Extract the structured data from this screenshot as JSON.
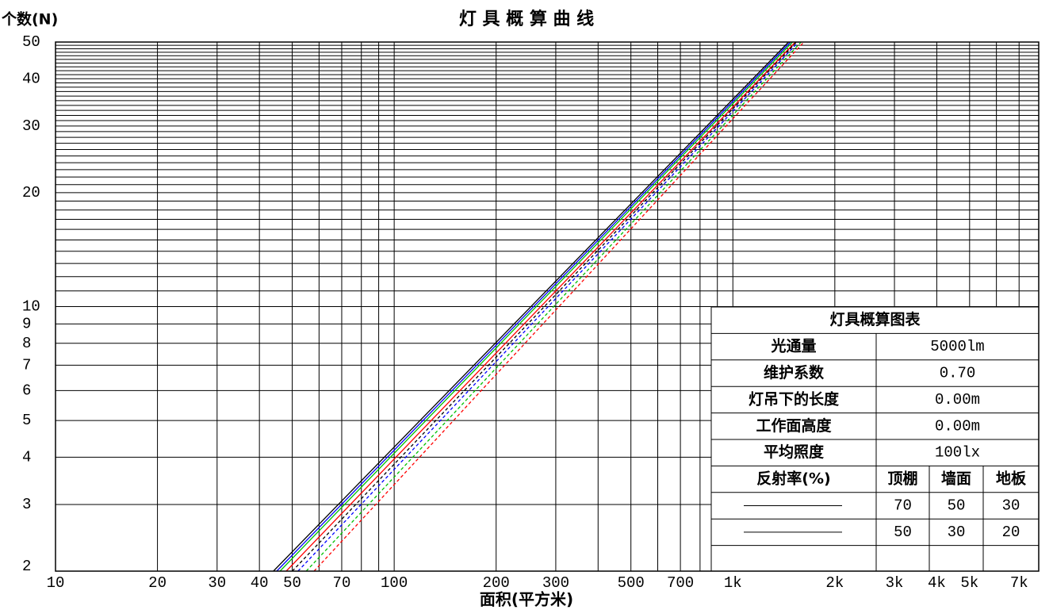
{
  "chart_data": {
    "type": "line",
    "title": "灯 具 概 算 曲 线",
    "y_label": "个数(N)",
    "x_label": "面积(平方米)",
    "log_x": true,
    "log_y": true,
    "grid": true,
    "xlim": [
      10,
      8000
    ],
    "ylim": [
      2,
      50
    ],
    "xticks": [
      10,
      20,
      30,
      40,
      50,
      70,
      100,
      200,
      300,
      500,
      700,
      {
        "value": 1000,
        "label": "1k"
      },
      {
        "value": 2000,
        "label": "2k"
      },
      {
        "value": 3000,
        "label": "3k"
      },
      {
        "value": 4000,
        "label": "4k"
      },
      {
        "value": 5000,
        "label": "5k"
      },
      {
        "value": 7000,
        "label": "7k"
      }
    ],
    "x_minor_grid": [
      60,
      80,
      90,
      400,
      600,
      800,
      900,
      6000
    ],
    "yticks": [
      2,
      3,
      4,
      5,
      6,
      7,
      8,
      9,
      10,
      20,
      30,
      40,
      50
    ],
    "y_minor_grid": [
      11,
      12,
      13,
      14,
      15,
      16,
      17,
      18,
      19,
      21,
      22,
      23,
      24,
      25,
      26,
      27,
      28,
      29,
      31,
      32,
      33,
      34,
      35,
      36,
      37,
      38,
      39,
      41,
      42,
      43,
      44,
      45,
      46,
      47,
      48,
      49
    ],
    "series": [
      {
        "color": "#000000",
        "style": "solid",
        "x": [
          44,
          1460
        ],
        "values": [
          2,
          50
        ]
      },
      {
        "color": "#0000ff",
        "style": "solid",
        "x": [
          45,
          1480
        ],
        "values": [
          2,
          50
        ]
      },
      {
        "color": "#00c000",
        "style": "solid",
        "x": [
          46,
          1500
        ],
        "values": [
          2,
          50
        ]
      },
      {
        "color": "#ff0000",
        "style": "solid",
        "x": [
          48,
          1530
        ],
        "values": [
          2,
          50
        ]
      },
      {
        "color": "#000000",
        "style": "dashed",
        "x": [
          50,
          1540
        ],
        "values": [
          2,
          50
        ]
      },
      {
        "color": "#0000ff",
        "style": "dashed",
        "x": [
          52,
          1560
        ],
        "values": [
          2,
          50
        ]
      },
      {
        "color": "#00c000",
        "style": "dashed",
        "x": [
          55,
          1590
        ],
        "values": [
          2,
          50
        ]
      },
      {
        "color": "#ff0000",
        "style": "dashed",
        "x": [
          58,
          1620
        ],
        "values": [
          2,
          50
        ]
      }
    ],
    "table": {
      "title": "灯具概算图表",
      "rows": [
        [
          "光通量",
          "5000lm"
        ],
        [
          "维护系数",
          "0.70"
        ],
        [
          "灯吊下的长度",
          "0.00m"
        ],
        [
          "工作面高度",
          "0.00m"
        ],
        [
          "平均照度",
          "100lx"
        ]
      ],
      "reflectance_label": "反射率(%)",
      "reflectance_header": [
        "顶棚",
        "墙面",
        "地板"
      ],
      "reflectance_rows": [
        [
          70,
          50,
          30
        ],
        [
          50,
          30,
          20
        ]
      ]
    }
  }
}
